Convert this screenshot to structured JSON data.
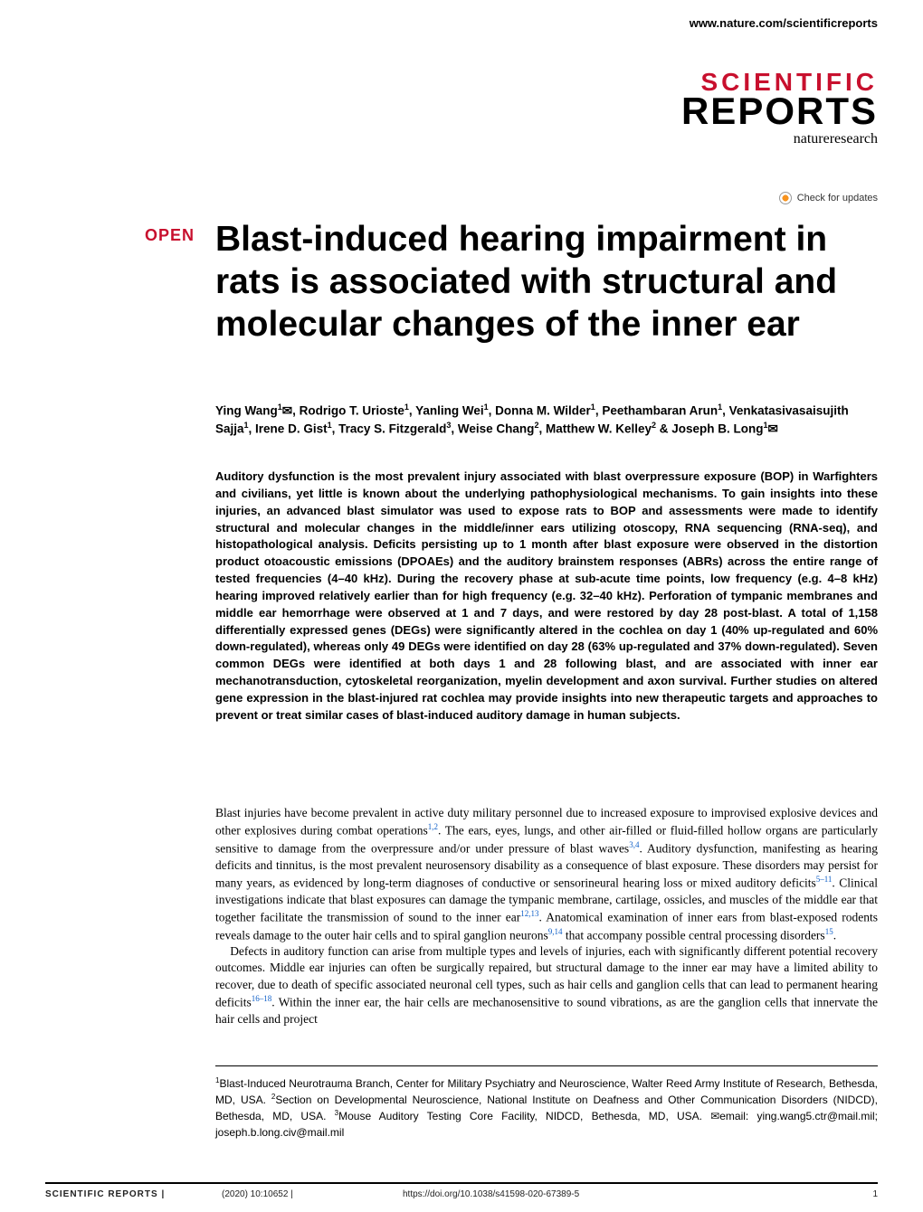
{
  "header": {
    "url": "www.nature.com/scientificreports",
    "logo_top": "SCIENTIFIC",
    "logo_bottom": "REPORTS",
    "logo_sub": "natureresearch",
    "check_updates": "Check for updates",
    "open_badge": "OPEN",
    "colors": {
      "brand_red": "#c8102e",
      "link_blue": "#1060c8"
    }
  },
  "article": {
    "title": "Blast-induced hearing impairment in rats is associated with structural and molecular changes of the inner ear",
    "authors_html": "Ying Wang<sup>1</sup>✉, Rodrigo T. Urioste<sup>1</sup>, Yanling Wei<sup>1</sup>, Donna M. Wilder<sup>1</sup>, Peethambaran Arun<sup>1</sup>, Venkatasivasaisujith Sajja<sup>1</sup>, Irene D. Gist<sup>1</sup>, Tracy S. Fitzgerald<sup>3</sup>, Weise Chang<sup>2</sup>, Matthew W. Kelley<sup>2</sup> & Joseph B. Long<sup>1</sup>✉",
    "abstract": "Auditory dysfunction is the most prevalent injury associated with blast overpressure exposure (BOP) in Warfighters and civilians, yet little is known about the underlying pathophysiological mechanisms. To gain insights into these injuries, an advanced blast simulator was used to expose rats to BOP and assessments were made to identify structural and molecular changes in the middle/inner ears utilizing otoscopy, RNA sequencing (RNA-seq), and histopathological analysis. Deficits persisting up to 1 month after blast exposure were observed in the distortion product otoacoustic emissions (DPOAEs) and the auditory brainstem responses (ABRs) across the entire range of tested frequencies (4–40 kHz). During the recovery phase at sub-acute time points, low frequency (e.g. 4–8 kHz) hearing improved relatively earlier than for high frequency (e.g. 32–40 kHz). Perforation of tympanic membranes and middle ear hemorrhage were observed at 1 and 7 days, and were restored by day 28 post-blast. A total of 1,158 differentially expressed genes (DEGs) were significantly altered in the cochlea on day 1 (40% up-regulated and 60% down-regulated), whereas only 49 DEGs were identified on day 28 (63% up-regulated and 37% down-regulated). Seven common DEGs were identified at both days 1 and 28 following blast, and are associated with inner ear mechanotransduction, cytoskeletal reorganization, myelin development and axon survival. Further studies on altered gene expression in the blast-injured rat cochlea may provide insights into new therapeutic targets and approaches to prevent or treat similar cases of blast-induced auditory damage in human subjects.",
    "body_p1": "Blast injuries have become prevalent in active duty military personnel due to increased exposure to improvised explosive devices and other explosives during combat operations<sup>1,2</sup>. The ears, eyes, lungs, and other air-filled or fluid-filled hollow organs are particularly sensitive to damage from the overpressure and/or under pressure of blast waves<sup>3,4</sup>. Auditory dysfunction, manifesting as hearing deficits and tinnitus, is the most prevalent neurosensory disability as a consequence of blast exposure. These disorders may persist for many years, as evidenced by long-term diagnoses of conductive or sensorineural hearing loss or mixed auditory deficits<sup>5–11</sup>. Clinical investigations indicate that blast exposures can damage the tympanic membrane, cartilage, ossicles, and muscles of the middle ear that together facilitate the transmission of sound to the inner ear<sup>12,13</sup>. Anatomical examination of inner ears from blast-exposed rodents reveals damage to the outer hair cells and to spiral ganglion neurons<sup>9,14</sup> that accompany possible central processing disorders<sup>15</sup>.",
    "body_p2": "Defects in auditory function can arise from multiple types and levels of injuries, each with significantly different potential recovery outcomes. Middle ear injuries can often be surgically repaired, but structural damage to the inner ear may have a limited ability to recover, due to death of specific associated neuronal cell types, such as hair cells and ganglion cells that can lead to permanent hearing deficits<sup>16–18</sup>. Within the inner ear, the hair cells are mechanosensitive to sound vibrations, as are the ganglion cells that innervate the hair cells and project",
    "affiliations": "<sup>1</sup>Blast-Induced Neurotrauma Branch, Center for Military Psychiatry and Neuroscience, Walter Reed Army Institute of Research, Bethesda, MD, USA. <sup>2</sup>Section on Developmental Neuroscience, National Institute on Deafness and Other Communication Disorders (NIDCD), Bethesda, MD, USA. <sup>3</sup>Mouse Auditory Testing Core Facility, NIDCD, Bethesda, MD, USA. ✉email: ying.wang5.ctr@mail.mil; joseph.b.long.civ@mail.mil"
  },
  "footer": {
    "journal": "SCIENTIFIC REPORTS |",
    "citation": "(2020) 10:10652  |",
    "doi": "https://doi.org/10.1038/s41598-020-67389-5",
    "page": "1"
  }
}
